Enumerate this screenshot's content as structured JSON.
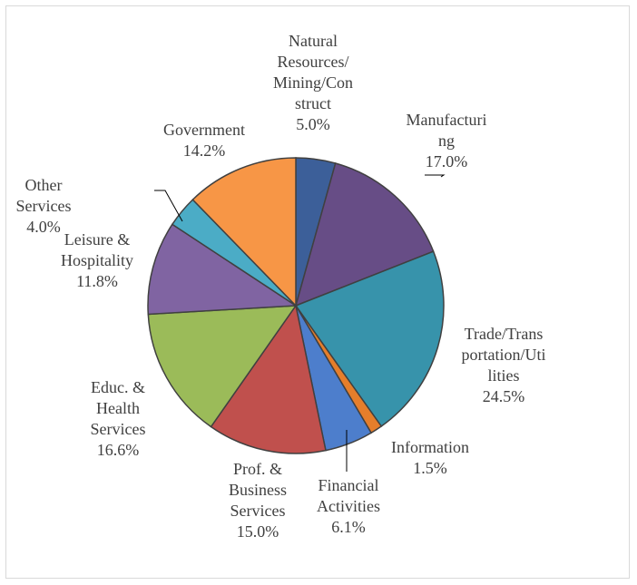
{
  "chart_data": {
    "type": "pie",
    "title": "",
    "start_angle": "12 o'clock",
    "direction": "clockwise",
    "slices": [
      {
        "label": "Natural Resources/Mining/Construct",
        "value": 5.0,
        "value_label": "5.0%",
        "label_lines": [
          "Natural",
          "Resources/",
          "Mining/Con",
          "struct",
          "5.0%"
        ],
        "color": "#3c5f99"
      },
      {
        "label": "Manufacturing",
        "value": 17.0,
        "value_label": "17.0%",
        "label_lines": [
          "Manufacturi",
          "ng",
          "17.0%"
        ],
        "color": "#674d86"
      },
      {
        "label": "Trade/Transportation/Utilities",
        "value": 24.5,
        "value_label": "24.5%",
        "label_lines": [
          "Trade/Trans",
          "portation/Uti",
          "lities",
          "24.5%"
        ],
        "color": "#3793ab"
      },
      {
        "label": "Information",
        "value": 1.5,
        "value_label": "1.5%",
        "label_lines": [
          "Information",
          "1.5%"
        ],
        "color": "#e57e2b"
      },
      {
        "label": "Financial Activities",
        "value": 6.1,
        "value_label": "6.1%",
        "label_lines": [
          "Financial",
          "Activities",
          "6.1%"
        ],
        "color": "#4d7ecc"
      },
      {
        "label": "Prof. & Business Services",
        "value": 15.0,
        "value_label": "15.0%",
        "label_lines": [
          "Prof. &",
          "Business",
          "Services",
          "15.0%"
        ],
        "color": "#c0504d"
      },
      {
        "label": "Educ. & Health Services",
        "value": 16.6,
        "value_label": "16.6%",
        "label_lines": [
          "Educ. &",
          "Health",
          "Services",
          "16.6%"
        ],
        "color": "#9bbb59"
      },
      {
        "label": "Leisure & Hospitality",
        "value": 11.8,
        "value_label": "11.8%",
        "label_lines": [
          "Leisure &",
          "Hospitality",
          "11.8%"
        ],
        "color": "#8064a2"
      },
      {
        "label": "Other Services",
        "value": 4.0,
        "value_label": "4.0%",
        "label_lines": [
          "Other",
          "Services",
          "4.0%"
        ],
        "color": "#4bacc6"
      },
      {
        "label": "Government",
        "value": 14.2,
        "value_label": "14.2%",
        "label_lines": [
          "Government",
          "14.2%"
        ],
        "color": "#f79646"
      }
    ]
  }
}
